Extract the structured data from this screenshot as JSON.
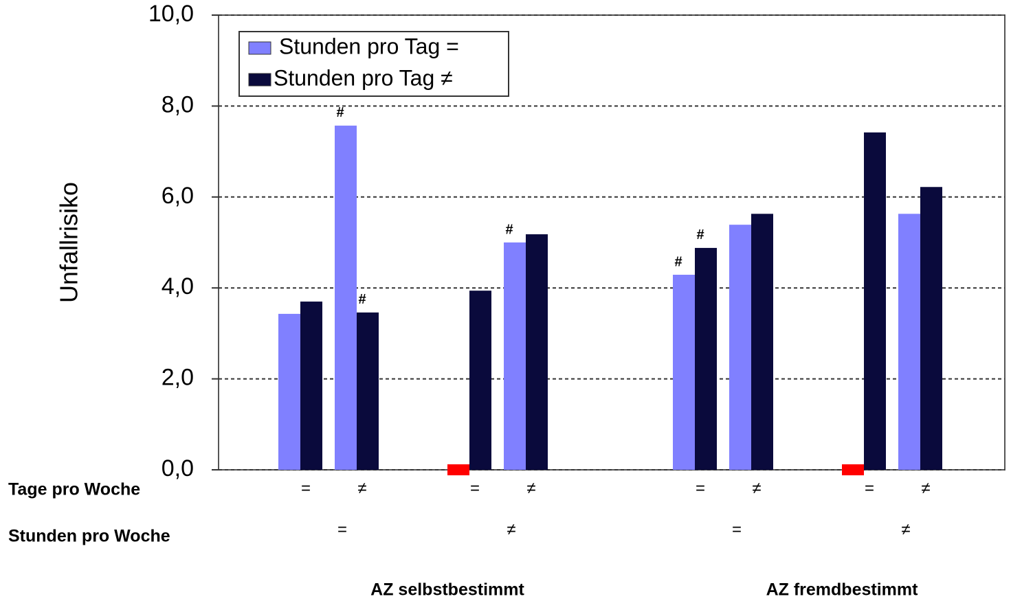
{
  "chart_data": {
    "type": "bar",
    "y_label": "Unfallrisiko",
    "row_titles": [
      "Tage pro Woche",
      "Stunden pro Woche"
    ],
    "categories": [
      "=",
      "≠",
      "=",
      "≠",
      "=",
      "≠",
      "=",
      "≠"
    ],
    "stunden_pro_woche": [
      "=",
      "≠",
      "=",
      "≠"
    ],
    "groups": [
      "AZ selbstbestimmt",
      "AZ fremdbestimmt"
    ],
    "series": [
      {
        "name": "Stunden pro Tag =",
        "color": "#8080ff",
        "values": [
          3.43,
          7.57,
          null,
          5.0,
          4.29,
          5.39,
          null,
          5.63
        ],
        "annotations": [
          null,
          "#",
          null,
          "#",
          "#",
          null,
          null,
          null
        ]
      },
      {
        "name": "Stunden pro Tag ≠",
        "color": "#0a0a3c",
        "values": [
          3.7,
          3.46,
          3.94,
          5.18,
          4.88,
          5.63,
          7.42,
          6.22
        ],
        "annotations": [
          null,
          "#",
          null,
          null,
          "#",
          null,
          null,
          null
        ]
      }
    ],
    "missing_color": "#ff0000",
    "ylim": [
      0,
      10
    ],
    "yticks": [
      {
        "value": 0,
        "label": "0,0"
      },
      {
        "value": 2,
        "label": "2,0"
      },
      {
        "value": 4,
        "label": "4,0"
      },
      {
        "value": 6,
        "label": "6,0"
      },
      {
        "value": 8,
        "label": "8,0"
      },
      {
        "value": 10,
        "label": "10,0"
      }
    ],
    "grid": true,
    "legend": "top-left"
  }
}
